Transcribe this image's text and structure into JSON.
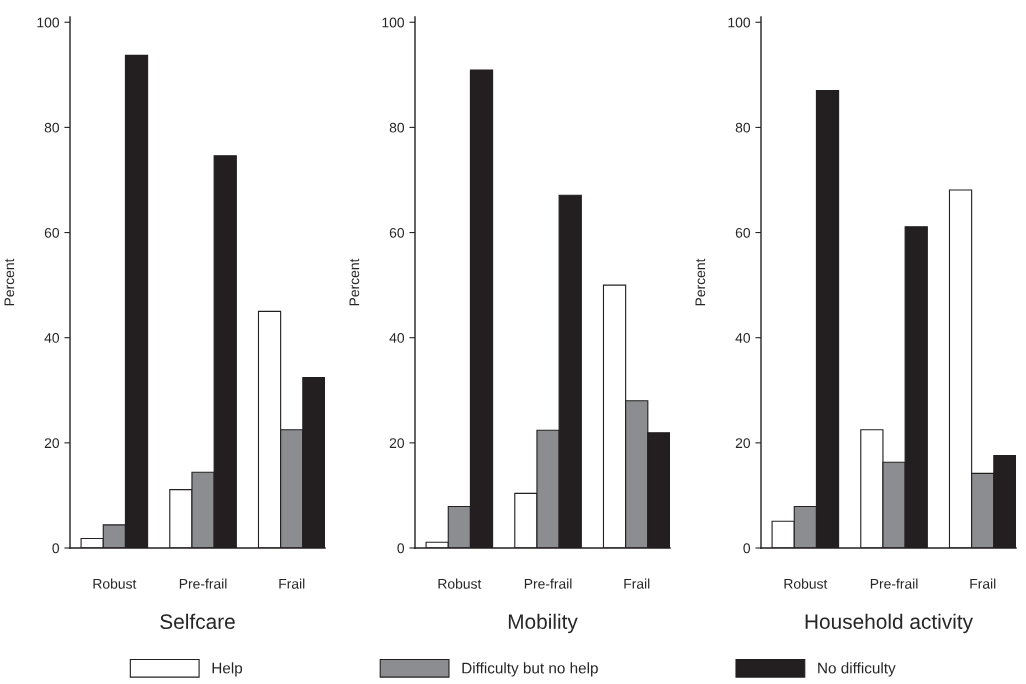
{
  "chart_data": [
    {
      "type": "bar",
      "xlabel": "Selfcare",
      "ylabel": "Percent",
      "categories": [
        "Robust",
        "Pre-frail",
        "Frail"
      ],
      "ylim": [
        0,
        101
      ],
      "yticks": [
        0,
        20,
        40,
        60,
        80,
        100
      ],
      "legend": "bottom",
      "series": [
        {
          "name": "Help",
          "color": "#ffffff",
          "values": [
            1.8,
            11.1,
            45.0
          ]
        },
        {
          "name": "Difficulty but no help",
          "color": "#8c8d90",
          "values": [
            4.4,
            14.4,
            22.5
          ]
        },
        {
          "name": "No difficulty",
          "color": "#231f20",
          "values": [
            93.7,
            74.6,
            32.4
          ]
        }
      ]
    },
    {
      "type": "bar",
      "xlabel": "Mobility",
      "ylabel": "Percent",
      "categories": [
        "Robust",
        "Pre-frail",
        "Frail"
      ],
      "ylim": [
        0,
        101
      ],
      "yticks": [
        0,
        20,
        40,
        60,
        80,
        100
      ],
      "series": [
        {
          "color": "#ffffff",
          "values": [
            1.1,
            10.4,
            50.0
          ]
        },
        {
          "color": "#8c8d90",
          "values": [
            7.9,
            22.4,
            28.0
          ]
        },
        {
          "color": "#231f20",
          "values": [
            90.9,
            67.1,
            21.9
          ]
        }
      ]
    },
    {
      "type": "bar",
      "xlabel": "Household activity",
      "ylabel": "Percent",
      "categories": [
        "Robust",
        "Pre-frail",
        "Frail"
      ],
      "ylim": [
        0,
        101
      ],
      "yticks": [
        0,
        20,
        40,
        60,
        80,
        100
      ],
      "series": [
        {
          "color": "#ffffff",
          "values": [
            5.1,
            22.5,
            68.1
          ]
        },
        {
          "color": "#8c8d90",
          "values": [
            7.9,
            16.3,
            14.2
          ]
        },
        {
          "color": "#231f20",
          "values": [
            87.0,
            61.1,
            17.6
          ]
        }
      ]
    }
  ]
}
